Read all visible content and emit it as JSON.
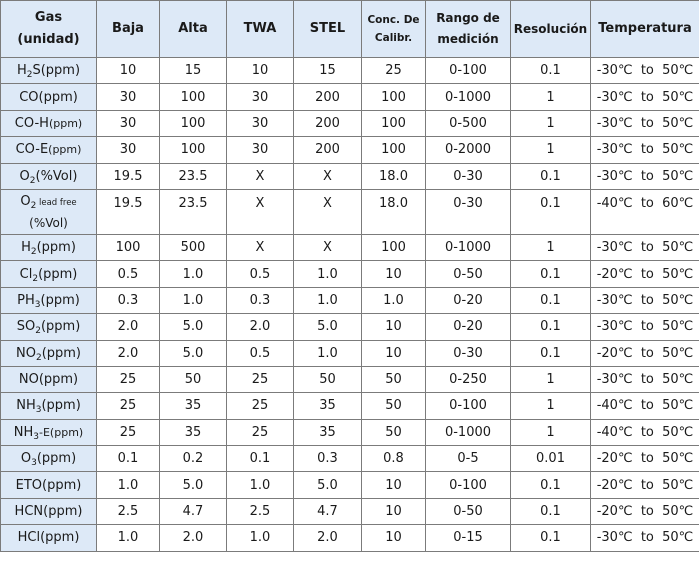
{
  "headers": {
    "gas_line1": "Gas",
    "gas_line2": "(unidad)",
    "low": "Baja",
    "high": "Alta",
    "twa": "TWA",
    "stel": "STEL",
    "cal_line1": "Conc. De",
    "cal_line2": "Calibr.",
    "range_line1": "Rango de",
    "range_line2": "medición",
    "resolution": "Resolución",
    "temperature": "Temperatura"
  },
  "rows": [
    {
      "gas": "H",
      "sub": "2",
      "suffix": "S(ppm)",
      "low": "10",
      "high": "15",
      "twa": "10",
      "stel": "15",
      "cal": "25",
      "range": "0-100",
      "res": "0.1",
      "temp": "-30℃  to  50℃"
    },
    {
      "gas": "CO(ppm)",
      "sub": "",
      "suffix": "",
      "low": "30",
      "high": "100",
      "twa": "30",
      "stel": "200",
      "cal": "100",
      "range": "0-1000",
      "res": "1",
      "temp": "-30℃  to  50℃"
    },
    {
      "gas": "CO-H",
      "sub": "",
      "suffix": "(ppm)",
      "low": "30",
      "high": "100",
      "twa": "30",
      "stel": "200",
      "cal": "100",
      "range": "0-500",
      "res": "1",
      "temp": "-30℃  to  50℃"
    },
    {
      "gas": "CO-E",
      "sub": "",
      "suffix": "(ppm)",
      "low": "30",
      "high": "100",
      "twa": "30",
      "stel": "200",
      "cal": "100",
      "range": "0-2000",
      "res": "1",
      "temp": "-30℃  to  50℃"
    },
    {
      "gas": "O",
      "sub": "2",
      "suffix": "(%Vol)",
      "low": "19.5",
      "high": "23.5",
      "twa": "X",
      "stel": "X",
      "cal": "18.0",
      "range": "0-30",
      "res": "0.1",
      "temp": "-30℃  to  50℃"
    },
    {
      "gas": "O",
      "sub": "2",
      "suffix": "lead free",
      "suffix2": "(%Vol)",
      "low": "19.5",
      "high": "23.5",
      "twa": "X",
      "stel": "X",
      "cal": "18.0",
      "range": "0-30",
      "res": "0.1",
      "temp": "-40℃  to  60℃"
    },
    {
      "gas": "H",
      "sub": "2",
      "suffix": "(ppm)",
      "low": "100",
      "high": "500",
      "twa": "X",
      "stel": "X",
      "cal": "100",
      "range": "0-1000",
      "res": "1",
      "temp": "-30℃  to  50℃"
    },
    {
      "gas": "Cl",
      "sub": "2",
      "suffix": "(ppm)",
      "low": "0.5",
      "high": "1.0",
      "twa": "0.5",
      "stel": "1.0",
      "cal": "10",
      "range": "0-50",
      "res": "0.1",
      "temp": "-20℃  to  50℃"
    },
    {
      "gas": "PH",
      "sub": "3",
      "suffix": "(ppm)",
      "low": "0.3",
      "high": "1.0",
      "twa": "0.3",
      "stel": "1.0",
      "cal": "1.0",
      "range": "0-20",
      "res": "0.1",
      "temp": "-30℃  to  50℃"
    },
    {
      "gas": "SO",
      "sub": "2",
      "suffix": "(ppm)",
      "low": "2.0",
      "high": "5.0",
      "twa": "2.0",
      "stel": "5.0",
      "cal": "10",
      "range": "0-20",
      "res": "0.1",
      "temp": "-30℃  to  50℃"
    },
    {
      "gas": "NO",
      "sub": "2",
      "suffix": "(ppm)",
      "low": "2.0",
      "high": "5.0",
      "twa": "0.5",
      "stel": "1.0",
      "cal": "10",
      "range": "0-30",
      "res": "0.1",
      "temp": "-20℃  to  50℃"
    },
    {
      "gas": "NO(ppm)",
      "sub": "",
      "suffix": "",
      "low": "25",
      "high": "50",
      "twa": "25",
      "stel": "50",
      "cal": "50",
      "range": "0-250",
      "res": "1",
      "temp": "-30℃  to  50℃"
    },
    {
      "gas": "NH",
      "sub": "3",
      "suffix": "(ppm)",
      "low": "25",
      "high": "35",
      "twa": "25",
      "stel": "35",
      "cal": "50",
      "range": "0-100",
      "res": "1",
      "temp": "-40℃  to  50℃"
    },
    {
      "gas": "NH",
      "sub": "3",
      "suffix": "-E(ppm)",
      "low": "25",
      "high": "35",
      "twa": "25",
      "stel": "35",
      "cal": "50",
      "range": "0-1000",
      "res": "1",
      "temp": "-40℃  to  50℃"
    },
    {
      "gas": "O",
      "sub": "3",
      "suffix": "(ppm)",
      "low": "0.1",
      "high": "0.2",
      "twa": "0.1",
      "stel": "0.3",
      "cal": "0.8",
      "range": "0-5",
      "res": "0.01",
      "temp": "-20℃  to  50℃"
    },
    {
      "gas": "ETO(ppm)",
      "sub": "",
      "suffix": "",
      "low": "1.0",
      "high": "5.0",
      "twa": "1.0",
      "stel": "5.0",
      "cal": "10",
      "range": "0-100",
      "res": "0.1",
      "temp": "-20℃  to  50℃"
    },
    {
      "gas": "HCN(ppm)",
      "sub": "",
      "suffix": "",
      "low": "2.5",
      "high": "4.7",
      "twa": "2.5",
      "stel": "4.7",
      "cal": "10",
      "range": "0-50",
      "res": "0.1",
      "temp": "-20℃  to  50℃"
    },
    {
      "gas": "HCl(ppm)",
      "sub": "",
      "suffix": "",
      "low": "1.0",
      "high": "2.0",
      "twa": "1.0",
      "stel": "2.0",
      "cal": "10",
      "range": "0-15",
      "res": "0.1",
      "temp": "-30℃  to  50℃"
    }
  ]
}
